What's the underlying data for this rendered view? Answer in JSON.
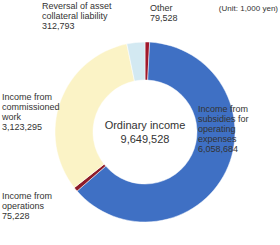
{
  "chart_data": {
    "type": "donut",
    "center_title": "Ordinary income",
    "center_value": {
      "value": 9649528,
      "label": "9,649,528"
    },
    "unit": "(Unit: 1,000 yen)",
    "categories": [
      "Other",
      "Income from subsidies for operating expenses",
      "Income from operations",
      "Income from commissioned work",
      "Reversal of asset collateral liability"
    ],
    "values": [
      79528,
      6058684,
      75228,
      3123295,
      312793
    ],
    "value_labels": [
      "79,528",
      "6,058,684",
      "75,228",
      "3,123,295",
      "312,793"
    ],
    "colors": [
      "#a0182b",
      "#3f70c4",
      "#8e1c2a",
      "#fbf3c6",
      "#d3e9f2"
    ],
    "data_labels": true
  }
}
